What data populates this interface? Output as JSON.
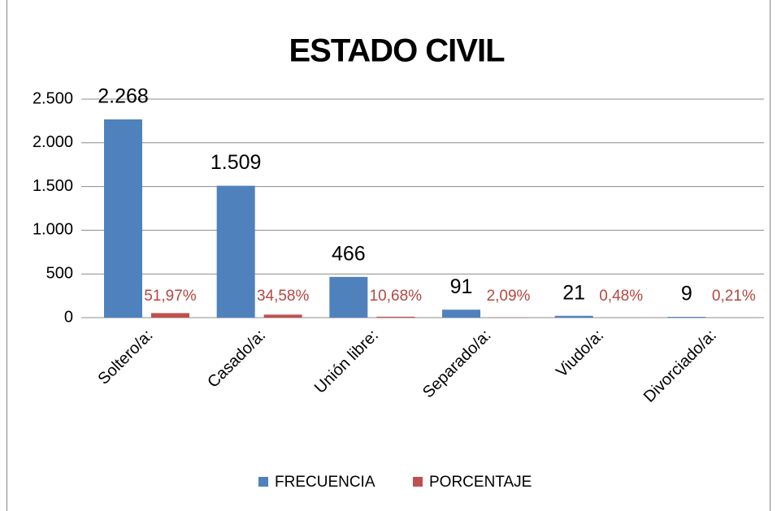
{
  "chart_data": {
    "type": "bar",
    "title": "ESTADO CIVIL",
    "categories": [
      "Soltero/a:",
      "Casado/a:",
      "Unión libre:",
      "Separado/a:",
      "Viudo/a:",
      "Divorciado/a:"
    ],
    "series": [
      {
        "name": "FRECUENCIA",
        "color": "#4f81bd",
        "values": [
          2268,
          1509,
          466,
          91,
          21,
          9
        ],
        "value_labels": [
          "2.268",
          "1.509",
          "466",
          "91",
          "21",
          "9"
        ]
      },
      {
        "name": "PORCENTAJE",
        "color": "#c0504d",
        "values": [
          51.97,
          34.58,
          10.68,
          2.09,
          0.48,
          0.21
        ],
        "value_labels": [
          "51,97%",
          "34,58%",
          "10,68%",
          "2,09%",
          "0,48%",
          "0,21%"
        ]
      }
    ],
    "ylim": [
      0,
      2500
    ],
    "yticks": [
      0,
      500,
      {
        "value": 1000,
        "label": "1.000"
      },
      {
        "value": 1500,
        "label": "1.500"
      },
      {
        "value": 2000,
        "label": "2.000"
      },
      {
        "value": 2500,
        "label": "2.500"
      }
    ],
    "grid": true,
    "legend": "bottom"
  }
}
